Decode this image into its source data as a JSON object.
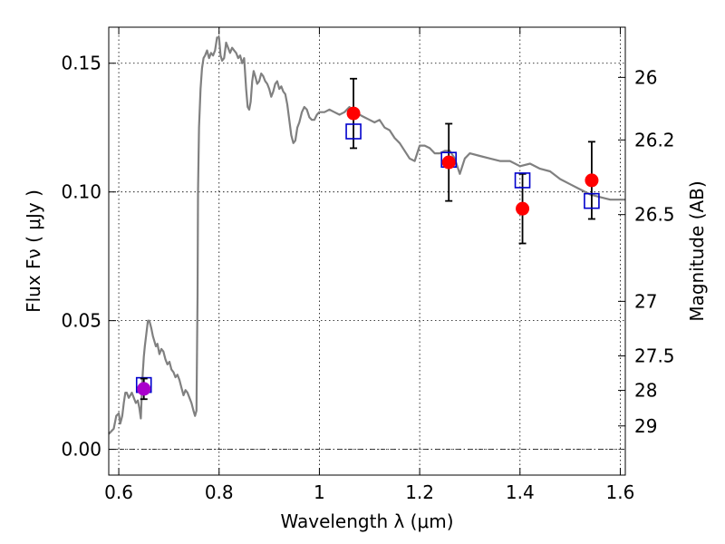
{
  "chart_data": {
    "type": "scatter",
    "xlabel": "Wavelength  λ (μm)",
    "ylabel": "Flux  Fν  ( μJy )",
    "y2label": "Magnitude (AB)",
    "xlim": [
      0.58,
      1.61
    ],
    "ylim": [
      -0.01,
      0.164
    ],
    "xticks": [
      0.6,
      0.8,
      1.0,
      1.2,
      1.4,
      1.6
    ],
    "xtick_labels": [
      "0.6",
      "0.8",
      "1",
      "1.2",
      "1.4",
      "1.6"
    ],
    "yticks": [
      0.0,
      0.05,
      0.1,
      0.15
    ],
    "ytick_labels": [
      "0.00",
      "0.05",
      "0.10",
      "0.15"
    ],
    "y2ticks": [
      {
        "label": "26",
        "flux": 0.1445
      },
      {
        "label": "26.2",
        "flux": 0.1202
      },
      {
        "label": "26.5",
        "flux": 0.0912
      },
      {
        "label": "27",
        "flux": 0.0575
      },
      {
        "label": "27.5",
        "flux": 0.0363
      },
      {
        "label": "28",
        "flux": 0.0229
      },
      {
        "label": "29",
        "flux": 0.0091
      }
    ],
    "grid": true,
    "zero_line": true,
    "colors": {
      "model": "#808080",
      "observed": "#ff0000",
      "model_photometry": "#0000cc",
      "special_point": "#aa00cc",
      "errorbar": "#000000"
    },
    "series": [
      {
        "type": "line",
        "x": [
          0.58,
          0.585,
          0.59,
          0.595,
          0.6,
          0.603,
          0.607,
          0.61,
          0.613,
          0.616,
          0.62,
          0.623,
          0.626,
          0.63,
          0.634,
          0.638,
          0.641,
          0.644,
          0.646,
          0.648,
          0.65,
          0.652,
          0.655,
          0.658,
          0.661,
          0.665,
          0.668,
          0.671,
          0.674,
          0.677,
          0.681,
          0.685,
          0.689,
          0.693,
          0.697,
          0.701,
          0.705,
          0.709,
          0.713,
          0.717,
          0.721,
          0.725,
          0.729,
          0.733,
          0.737,
          0.741,
          0.745,
          0.749,
          0.752,
          0.755,
          0.757,
          0.758,
          0.76,
          0.763,
          0.766,
          0.769,
          0.772,
          0.776,
          0.78,
          0.784,
          0.788,
          0.792,
          0.796,
          0.8,
          0.803,
          0.806,
          0.81,
          0.814,
          0.818,
          0.822,
          0.826,
          0.83,
          0.834,
          0.838,
          0.842,
          0.846,
          0.85,
          0.854,
          0.857,
          0.86,
          0.863,
          0.866,
          0.869,
          0.872,
          0.876,
          0.88,
          0.884,
          0.888,
          0.892,
          0.896,
          0.9,
          0.904,
          0.908,
          0.912,
          0.916,
          0.92,
          0.924,
          0.928,
          0.932,
          0.936,
          0.94,
          0.944,
          0.948,
          0.952,
          0.956,
          0.96,
          0.965,
          0.97,
          0.975,
          0.98,
          0.985,
          0.99,
          0.995,
          1.0,
          1.01,
          1.02,
          1.03,
          1.04,
          1.05,
          1.06,
          1.07,
          1.08,
          1.09,
          1.1,
          1.11,
          1.12,
          1.13,
          1.14,
          1.15,
          1.16,
          1.17,
          1.18,
          1.19,
          1.2,
          1.21,
          1.22,
          1.23,
          1.24,
          1.25,
          1.26,
          1.27,
          1.28,
          1.29,
          1.3,
          1.32,
          1.34,
          1.36,
          1.38,
          1.4,
          1.42,
          1.44,
          1.46,
          1.48,
          1.5,
          1.52,
          1.54,
          1.56,
          1.58,
          1.6,
          1.61
        ],
        "y": [
          0.006,
          0.007,
          0.008,
          0.013,
          0.014,
          0.01,
          0.013,
          0.018,
          0.022,
          0.022,
          0.02,
          0.021,
          0.022,
          0.02,
          0.018,
          0.019,
          0.016,
          0.012,
          0.022,
          0.03,
          0.036,
          0.04,
          0.045,
          0.05,
          0.05,
          0.047,
          0.044,
          0.042,
          0.04,
          0.041,
          0.037,
          0.039,
          0.038,
          0.035,
          0.033,
          0.034,
          0.031,
          0.03,
          0.028,
          0.029,
          0.027,
          0.024,
          0.021,
          0.023,
          0.022,
          0.02,
          0.018,
          0.015,
          0.013,
          0.015,
          0.06,
          0.1,
          0.125,
          0.14,
          0.148,
          0.152,
          0.153,
          0.155,
          0.152,
          0.154,
          0.153,
          0.155,
          0.16,
          0.16,
          0.153,
          0.151,
          0.152,
          0.158,
          0.156,
          0.154,
          0.156,
          0.155,
          0.154,
          0.152,
          0.153,
          0.15,
          0.152,
          0.14,
          0.133,
          0.132,
          0.135,
          0.143,
          0.147,
          0.145,
          0.142,
          0.143,
          0.146,
          0.145,
          0.143,
          0.142,
          0.14,
          0.137,
          0.139,
          0.142,
          0.143,
          0.14,
          0.141,
          0.139,
          0.138,
          0.134,
          0.128,
          0.122,
          0.119,
          0.12,
          0.125,
          0.127,
          0.131,
          0.133,
          0.132,
          0.129,
          0.128,
          0.128,
          0.13,
          0.131,
          0.131,
          0.132,
          0.131,
          0.13,
          0.131,
          0.133,
          0.131,
          0.13,
          0.129,
          0.128,
          0.127,
          0.128,
          0.125,
          0.124,
          0.121,
          0.119,
          0.116,
          0.113,
          0.112,
          0.118,
          0.118,
          0.117,
          0.115,
          0.115,
          0.116,
          0.116,
          0.113,
          0.107,
          0.113,
          0.115,
          0.114,
          0.113,
          0.112,
          0.112,
          0.11,
          0.111,
          0.109,
          0.108,
          0.105,
          0.103,
          0.101,
          0.099,
          0.098,
          0.097,
          0.097,
          0.097
        ]
      },
      {
        "type": "points",
        "x": [
          1.068,
          1.258,
          1.405,
          1.543
        ],
        "y": [
          0.1305,
          0.1115,
          0.0935,
          0.1045
        ],
        "yerr": [
          0.0135,
          0.015,
          0.0135,
          0.015
        ]
      },
      {
        "type": "points",
        "x": [
          0.65,
          1.068,
          1.258,
          1.405,
          1.543
        ],
        "y": [
          0.025,
          0.1235,
          0.1125,
          0.1045,
          0.0965
        ]
      },
      {
        "type": "points",
        "x": [
          0.65
        ],
        "y": [
          0.0235
        ],
        "yerr": [
          0.004
        ]
      }
    ]
  }
}
